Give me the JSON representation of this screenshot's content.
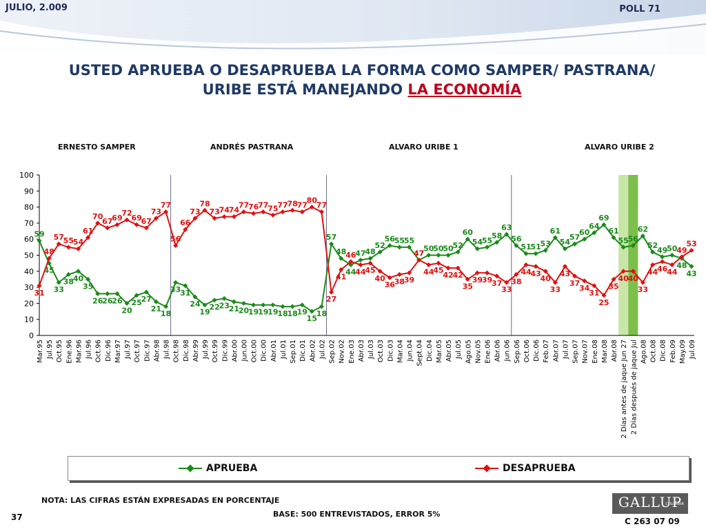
{
  "header": {
    "date": "JULIO, 2.009",
    "poll": "POLL 71"
  },
  "title": {
    "line1": "USTED APRUEBA O DESAPRUEBA LA FORMA COMO SAMPER/ PASTRANA/",
    "line2_prefix": "URIBE ESTÁ MANEJANDO ",
    "line2_highlight": "LA ECONOMÍA"
  },
  "eras": [
    "ERNESTO SAMPER",
    "ANDRÉS  PASTRANA",
    "ALVARO URIBE 1",
    "ALVARO URIBE 2"
  ],
  "legend": {
    "aprueba": "APRUEBA",
    "desaprueba": "DESAPRUEBA"
  },
  "footer": {
    "note": "NOTA: LAS CIFRAS ESTÁN EXPRESADAS EN PORCENTAJE",
    "base": "BASE: 500 ENTREVISTADOS, ERROR 5%",
    "slide_number": "37",
    "logo": "GALLUP",
    "logo_sub": "COLOMBIA",
    "code": "C 263 07 09"
  },
  "colors": {
    "aprueba": "#1a8a1a",
    "desaprueba": "#e01010",
    "band_light": "#c8e6a8",
    "band_dark": "#7cbf4a"
  },
  "chart_data": {
    "type": "line",
    "ylim": [
      0,
      100
    ],
    "yticks": [
      0,
      10,
      20,
      30,
      40,
      50,
      60,
      70,
      80,
      90,
      100
    ],
    "x": [
      "Mar.95",
      "Jul.95",
      "Oct.95",
      "Ene.96",
      "Mar.96",
      "Jul.96",
      "Oct.96",
      "Dic.96",
      "Mar.97",
      "Jul.97",
      "Oct.97",
      "Dic.97",
      "Abr.98",
      "Jul.98",
      "Oct.98",
      "Dic.98",
      "Abr.99",
      "Jul.99",
      "Oct.99",
      "Dic.99",
      "Abr.00",
      "Jun.00",
      "Oct.00",
      "Dic.00",
      "Abr.01",
      "Jul.01",
      "Sep.01",
      "Dic.01",
      "Abr.02",
      "Jul.02",
      "Sep.02",
      "Nov.02",
      "Ene.03",
      "Abr.03",
      "Jul.03",
      "Oct.03",
      "Dic.03",
      "Mar.04",
      "Jun.04",
      "Sept.04",
      "Dic.04",
      "Mar.05",
      "Abr.05",
      "Jul.05",
      "Ago.05",
      "Nov.05",
      "Ene.06",
      "Abr.06",
      "Jun.06",
      "Sep.06",
      "Oct.06",
      "Dic.06",
      "Feb.07",
      "Abr.07",
      "Jul.07",
      "Sep.07",
      "Nov.07",
      "Ene.08",
      "Mar.08",
      "Abr.08",
      "2 Días antes de jaque Jun 27",
      "2 Días después de jaque Jul",
      "Ago.08",
      "Oct.08",
      "Dic.08",
      "Feb.09",
      "May.09",
      "Jul.09"
    ],
    "series": [
      {
        "name": "APRUEBA",
        "values": [
          59,
          45,
          33,
          38,
          40,
          35,
          26,
          26,
          26,
          20,
          25,
          27,
          21,
          18,
          33,
          31,
          24,
          19,
          22,
          23,
          21,
          20,
          19,
          19,
          19,
          18,
          18,
          19,
          15,
          18,
          57,
          48,
          44,
          47,
          48,
          52,
          56,
          55,
          55,
          47,
          50,
          50,
          50,
          52,
          60,
          54,
          55,
          58,
          63,
          56,
          51,
          51,
          53,
          61,
          54,
          57,
          60,
          64,
          69,
          61,
          55,
          56,
          62,
          52,
          49,
          50,
          48,
          43
        ]
      },
      {
        "name": "DESAPRUEBA",
        "values": [
          31,
          48,
          57,
          55,
          54,
          61,
          70,
          67,
          69,
          72,
          69,
          67,
          73,
          77,
          56,
          66,
          73,
          78,
          73,
          74,
          74,
          77,
          76,
          77,
          75,
          77,
          78,
          77,
          80,
          77,
          27,
          41,
          46,
          44,
          45,
          40,
          36,
          38,
          39,
          47,
          44,
          45,
          42,
          42,
          35,
          39,
          39,
          37,
          33,
          38,
          44,
          43,
          40,
          33,
          43,
          37,
          34,
          31,
          25,
          35,
          40,
          40,
          33,
          44,
          46,
          44,
          49,
          53
        ]
      }
    ],
    "eras": [
      "ERNESTO SAMPER",
      "ANDRÉS  PASTRANA",
      "ALVARO URIBE 1",
      "ALVARO URIBE 2"
    ],
    "highlighted_x": [
      "2 Días antes de jaque Jun 27",
      "2 Días después de jaque Jul"
    ],
    "legend_position": "bottom",
    "grid": false
  }
}
